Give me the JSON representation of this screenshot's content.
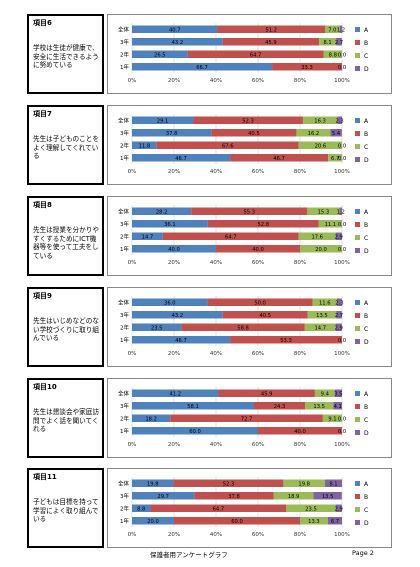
{
  "colors": {
    "A": "#4f81bd",
    "B": "#c0504d",
    "C": "#9bbb59",
    "D": "#8064a2"
  },
  "legend": [
    "A",
    "B",
    "C",
    "D"
  ],
  "footer": {
    "title": "保護者用アンケートグラフ",
    "page": "Page 2"
  },
  "sections": [
    {
      "number": "項目6",
      "question": "学校は生徒が健康で、安全に生活できるように努めている",
      "chart_data": {
        "type": "bar",
        "orientation": "horizontal-stacked-percent",
        "categories": [
          "全体",
          "3年",
          "2年",
          "1年"
        ],
        "series": [
          {
            "name": "A",
            "values": [
              40.7,
              43.2,
              26.5,
              66.7
            ]
          },
          {
            "name": "B",
            "values": [
              51.2,
              45.9,
              64.7,
              33.3
            ]
          },
          {
            "name": "C",
            "values": [
              7.0,
              8.1,
              8.8,
              0.0
            ]
          },
          {
            "name": "D",
            "values": [
              1.2,
              2.7,
              0.0,
              0.0
            ]
          }
        ],
        "labels": [
          [
            "40.7",
            "51.2",
            "7.0",
            "1.2"
          ],
          [
            "43.2",
            "45.9",
            "8.1",
            "2.7"
          ],
          [
            "26.5",
            "64.7",
            "8.8",
            "0.0"
          ],
          [
            "66.7",
            "33.3",
            "",
            "0.0"
          ]
        ],
        "xticks": [
          "0%",
          "20%",
          "40%",
          "60%",
          "80%",
          "100%"
        ],
        "xlim": [
          0,
          100
        ]
      }
    },
    {
      "number": "項目7",
      "question": "先生は子どものことをよく理解してくれている",
      "chart_data": {
        "type": "bar",
        "orientation": "horizontal-stacked-percent",
        "categories": [
          "全体",
          "3年",
          "2年",
          "1年"
        ],
        "series": [
          {
            "name": "A",
            "values": [
              29.1,
              37.8,
              11.8,
              46.7
            ]
          },
          {
            "name": "B",
            "values": [
              52.3,
              40.5,
              67.6,
              46.7
            ]
          },
          {
            "name": "C",
            "values": [
              16.3,
              16.2,
              20.6,
              6.7
            ]
          },
          {
            "name": "D",
            "values": [
              2.3,
              5.4,
              0.0,
              0.0
            ]
          }
        ],
        "labels": [
          [
            "29.1",
            "52.3",
            "16.3",
            "2.3"
          ],
          [
            "37.8",
            "40.5",
            "16.2",
            "5.4"
          ],
          [
            "11.8",
            "67.6",
            "20.6",
            "0.0"
          ],
          [
            "46.7",
            "46.7",
            "6.7",
            "0.0"
          ]
        ],
        "xticks": [
          "0%",
          "20%",
          "40%",
          "60%",
          "80%",
          "100%"
        ],
        "xlim": [
          0,
          100
        ]
      }
    },
    {
      "number": "項目8",
      "question": "先生は授業を分かりやすくするためにICT機器等を使って工夫をしている",
      "chart_data": {
        "type": "bar",
        "orientation": "horizontal-stacked-percent",
        "categories": [
          "全体",
          "3年",
          "2年",
          "1年"
        ],
        "series": [
          {
            "name": "A",
            "values": [
              28.2,
              36.1,
              14.7,
              40.0
            ]
          },
          {
            "name": "B",
            "values": [
              55.3,
              52.8,
              64.7,
              40.0
            ]
          },
          {
            "name": "C",
            "values": [
              15.3,
              11.1,
              17.6,
              20.0
            ]
          },
          {
            "name": "D",
            "values": [
              1.2,
              0.0,
              2.9,
              0.0
            ]
          }
        ],
        "labels": [
          [
            "28.2",
            "55.3",
            "15.3",
            "1.2"
          ],
          [
            "36.1",
            "52.8",
            "11.1",
            "0.0"
          ],
          [
            "14.7",
            "64.7",
            "17.6",
            "2.9"
          ],
          [
            "40.0",
            "40.0",
            "20.0",
            "0.0"
          ]
        ],
        "xticks": [
          "0%",
          "20%",
          "40%",
          "60%",
          "80%",
          "100%"
        ],
        "xlim": [
          0,
          100
        ]
      }
    },
    {
      "number": "項目9",
      "question": "先生はいじめなどのない学校づくりに取り組んでいる",
      "chart_data": {
        "type": "bar",
        "orientation": "horizontal-stacked-percent",
        "categories": [
          "全体",
          "3年",
          "2年",
          "1年"
        ],
        "series": [
          {
            "name": "A",
            "values": [
              36.0,
              43.2,
              23.5,
              46.7
            ]
          },
          {
            "name": "B",
            "values": [
              50.0,
              40.5,
              58.8,
              53.3
            ]
          },
          {
            "name": "C",
            "values": [
              11.6,
              13.5,
              14.7,
              0.0
            ]
          },
          {
            "name": "D",
            "values": [
              2.3,
              2.7,
              2.9,
              0.0
            ]
          }
        ],
        "labels": [
          [
            "36.0",
            "50.0",
            "11.6",
            "2.3"
          ],
          [
            "43.2",
            "40.5",
            "13.5",
            "2.7"
          ],
          [
            "23.5",
            "58.8",
            "14.7",
            "2.9"
          ],
          [
            "46.7",
            "53.3",
            "",
            "0.0"
          ]
        ],
        "xticks": [
          "0%",
          "20%",
          "40%",
          "60%",
          "80%",
          "100%"
        ],
        "xlim": [
          0,
          100
        ]
      }
    },
    {
      "number": "項目10",
      "question": "先生は懇談会や家庭訪問でよく話を聞いてくれる",
      "chart_data": {
        "type": "bar",
        "orientation": "horizontal-stacked-percent",
        "categories": [
          "全体",
          "3年",
          "2年",
          "1年"
        ],
        "series": [
          {
            "name": "A",
            "values": [
              41.2,
              58.1,
              18.2,
              60.0
            ]
          },
          {
            "name": "B",
            "values": [
              45.9,
              24.3,
              72.7,
              40.0
            ]
          },
          {
            "name": "C",
            "values": [
              9.4,
              13.5,
              9.1,
              0.0
            ]
          },
          {
            "name": "D",
            "values": [
              3.5,
              4.1,
              0.0,
              0.0
            ]
          }
        ],
        "labels": [
          [
            "41.2",
            "45.9",
            "9.4",
            "3.5"
          ],
          [
            "58.1",
            "24.3",
            "13.5",
            "4.1"
          ],
          [
            "18.2",
            "72.7",
            "9.1",
            "0.0"
          ],
          [
            "60.0",
            "40.0",
            "",
            "0.0"
          ]
        ],
        "xticks": [
          "0%",
          "20%",
          "40%",
          "60%",
          "80%",
          "100%"
        ],
        "xlim": [
          0,
          100
        ]
      }
    },
    {
      "number": "項目11",
      "question": "子どもは目標を持って学習によく取り組んでいる",
      "chart_data": {
        "type": "bar",
        "orientation": "horizontal-stacked-percent",
        "categories": [
          "全体",
          "3年",
          "2年",
          "1年"
        ],
        "series": [
          {
            "name": "A",
            "values": [
              19.8,
              29.7,
              8.8,
              20.0
            ]
          },
          {
            "name": "B",
            "values": [
              52.3,
              37.8,
              64.7,
              60.0
            ]
          },
          {
            "name": "C",
            "values": [
              19.8,
              18.9,
              23.5,
              13.3
            ]
          },
          {
            "name": "D",
            "values": [
              8.1,
              13.5,
              2.9,
              6.7
            ]
          }
        ],
        "labels": [
          [
            "19.8",
            "52.3",
            "19.8",
            "8.1"
          ],
          [
            "29.7",
            "37.8",
            "18.9",
            "13.5"
          ],
          [
            "8.8",
            "64.7",
            "23.5",
            "2.9"
          ],
          [
            "20.0",
            "60.0",
            "13.3",
            "6.7"
          ]
        ],
        "xticks": [
          "0%",
          "20%",
          "40%",
          "60%",
          "80%",
          "100%"
        ],
        "xlim": [
          0,
          100
        ]
      }
    }
  ]
}
